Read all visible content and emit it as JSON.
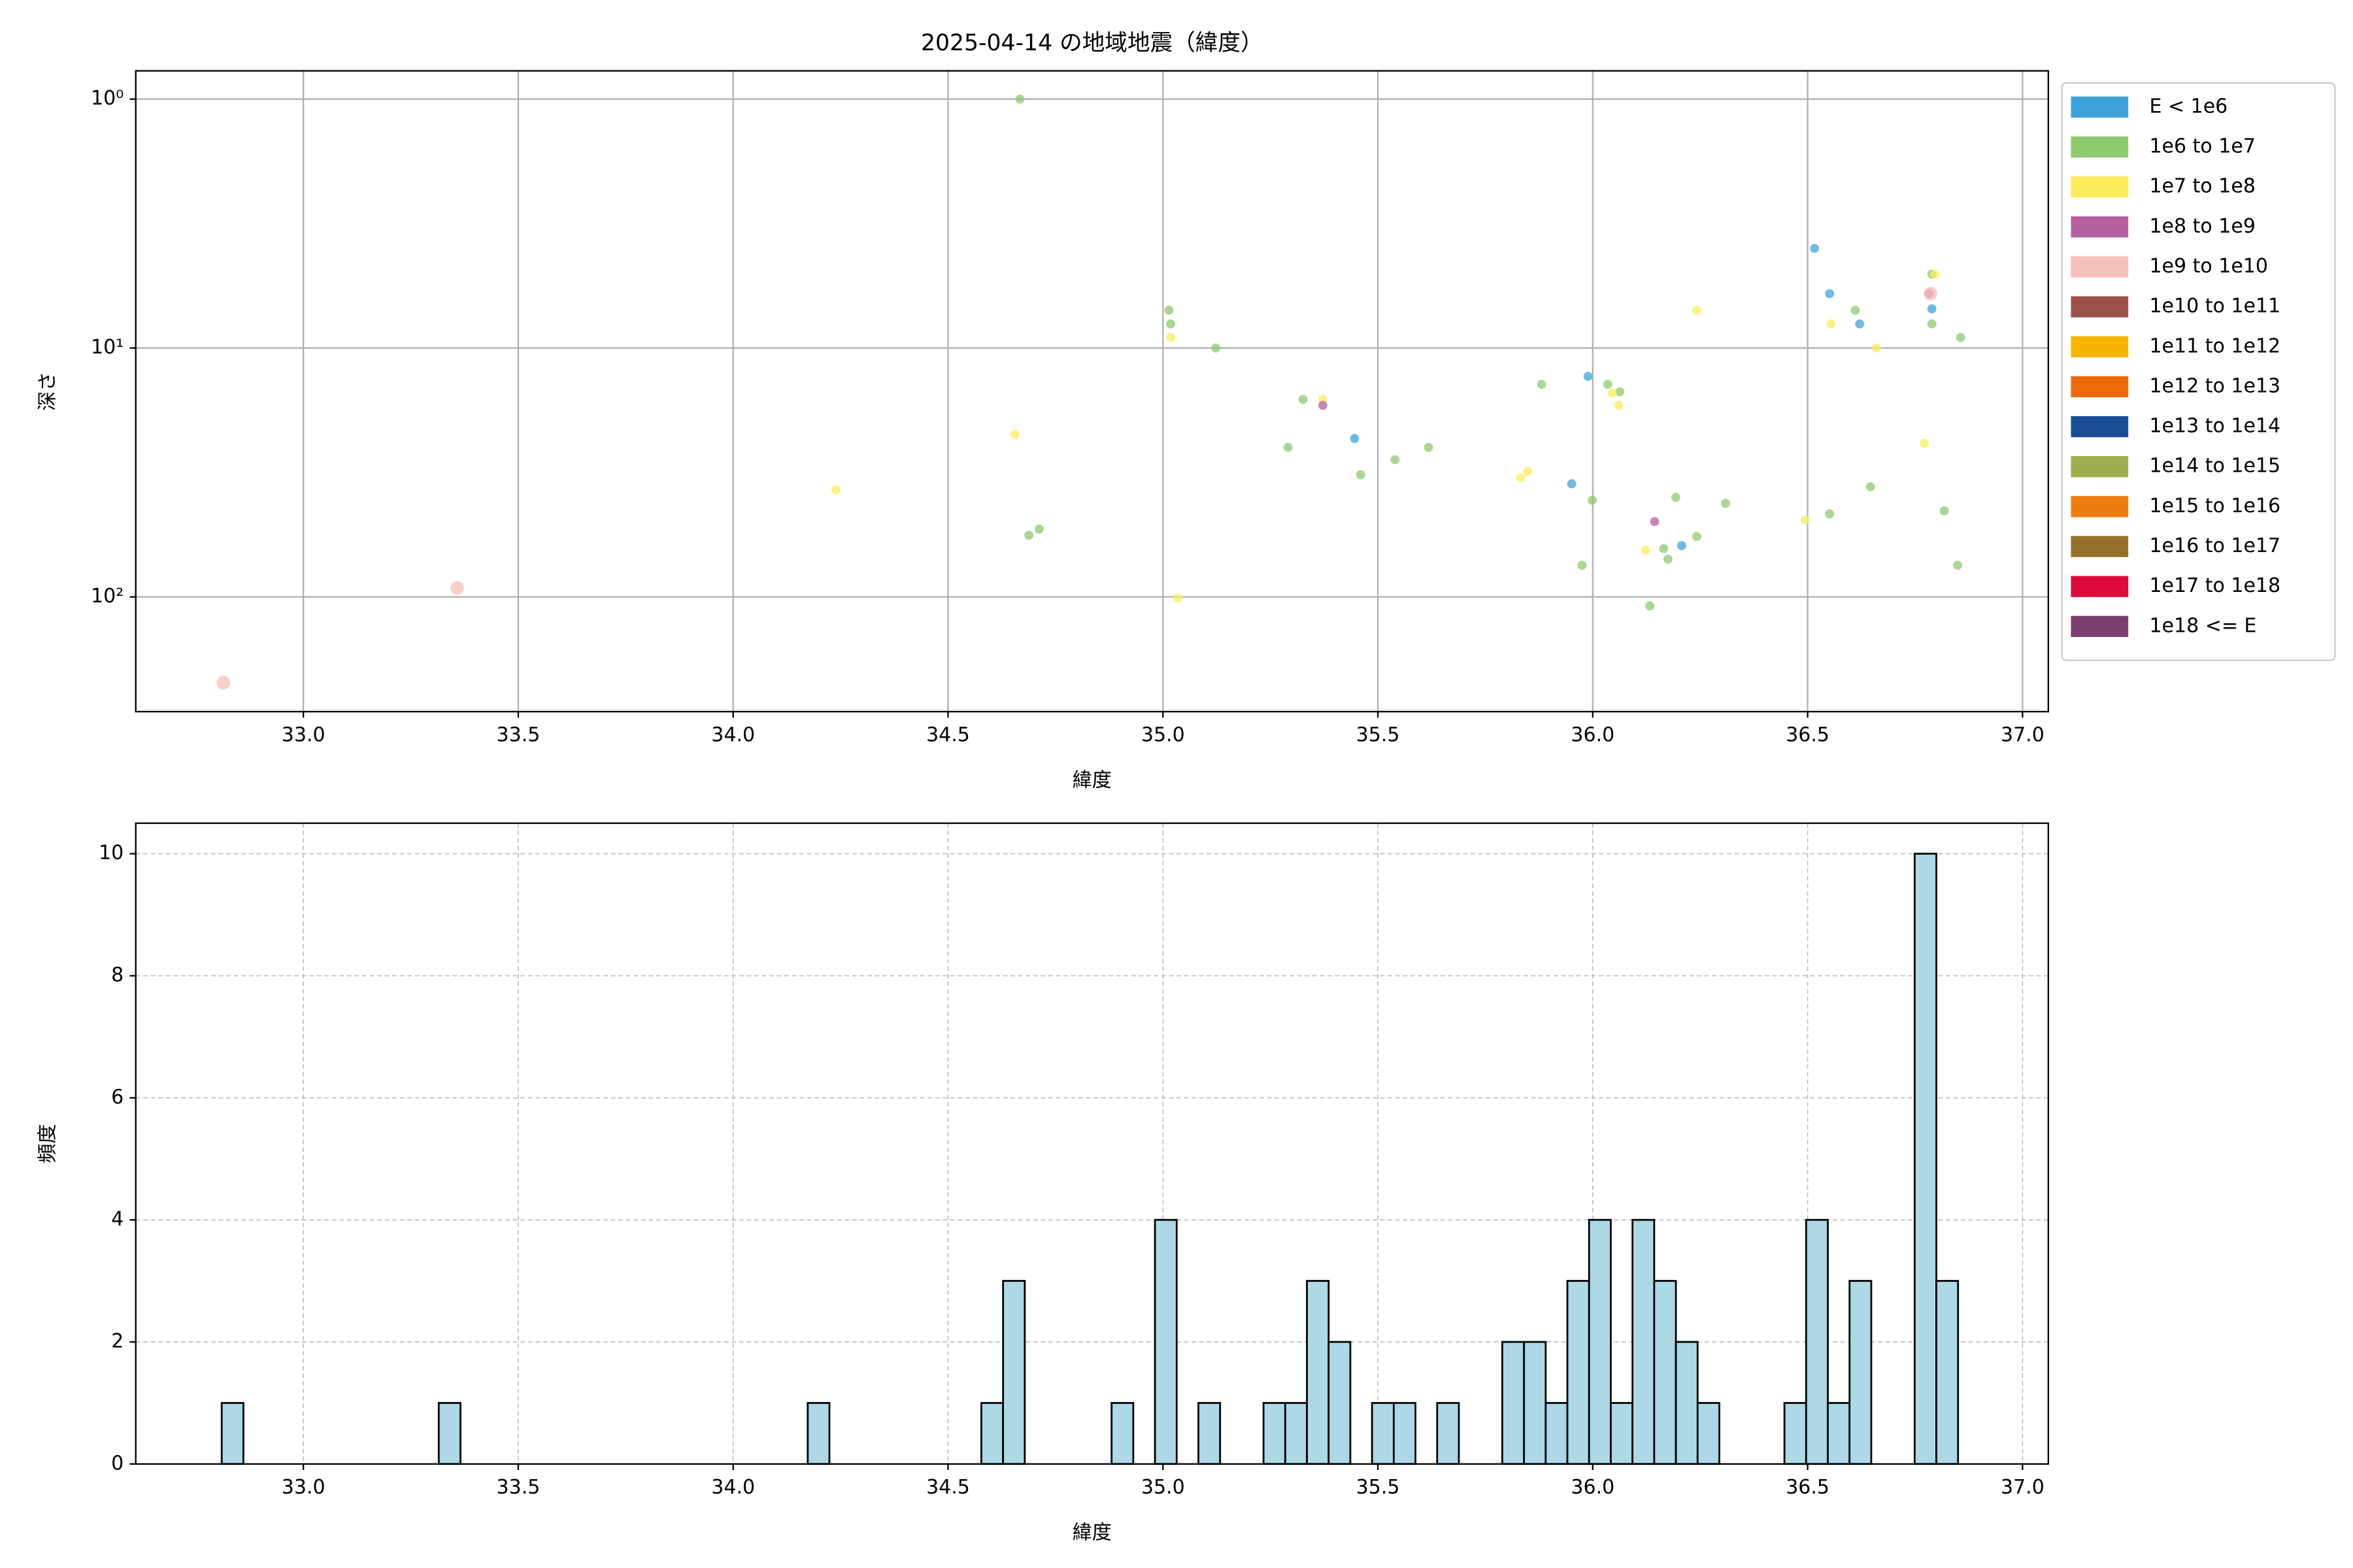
{
  "chart_data": [
    {
      "type": "scatter",
      "title": "2025-04-14 の地域地震（緯度）",
      "xlabel": "緯度",
      "ylabel": "深さ",
      "yscale": "log",
      "grid": true,
      "legend": "outside-right",
      "xlim": [
        32.61,
        37.06
      ],
      "ylim": [
        289,
        0.77
      ],
      "xticks": [
        {
          "value": 33,
          "label": "33.0"
        },
        {
          "value": 33.5,
          "label": "33.5"
        },
        {
          "value": 34,
          "label": "34.0"
        },
        {
          "value": 34.5,
          "label": "34.5"
        },
        {
          "value": 35,
          "label": "35.0"
        },
        {
          "value": 35.5,
          "label": "35.5"
        },
        {
          "value": 36,
          "label": "36.0"
        },
        {
          "value": 36.5,
          "label": "36.5"
        },
        {
          "value": 37,
          "label": "37.0"
        }
      ],
      "yticks": [
        {
          "value": 1,
          "label": "10⁰"
        },
        {
          "value": 10,
          "label": "10¹"
        },
        {
          "value": 100,
          "label": "10²"
        }
      ],
      "series": [
        {
          "name": "E < 1e6",
          "color": "#3ea3dc",
          "x": [
            36.516,
            36.551,
            36.621,
            36.789,
            35.989,
            35.446,
            35.951,
            36.207
          ],
          "values": [
            3.98,
            6.05,
            8.0,
            6.96,
            13.0,
            23.1,
            35.1,
            62.2
          ]
        },
        {
          "name": "1e6 to 1e7",
          "color": "#8dc96d",
          "x": [
            34.667,
            35.014,
            35.018,
            35.123,
            35.326,
            35.291,
            35.46,
            35.54,
            35.618,
            34.688,
            34.712,
            35.881,
            36.035,
            36.063,
            35.999,
            35.975,
            36.133,
            36.165,
            36.175,
            36.193,
            36.242,
            36.309,
            36.551,
            36.611,
            36.646,
            36.789,
            36.789,
            36.856,
            36.818,
            36.849
          ],
          "values": [
            1.0,
            7.05,
            8.0,
            10,
            16.1,
            25.1,
            32.3,
            28.1,
            25.1,
            56.5,
            53.4,
            14.0,
            14.0,
            15.0,
            40.9,
            74.6,
            108.7,
            64.0,
            70.5,
            39.8,
            57.2,
            42.1,
            46.4,
            7.05,
            36.1,
            5.05,
            8.0,
            9.07,
            45.1,
            74.6
          ]
        },
        {
          "name": "1e7 to 1e8",
          "color": "#fdec5a",
          "x": [
            34.239,
            34.656,
            35.018,
            35.035,
            35.372,
            35.832,
            35.849,
            36.046,
            36.06,
            36.123,
            36.242,
            36.495,
            36.554,
            36.66,
            36.772,
            36.796
          ],
          "values": [
            37.1,
            22.2,
            9.07,
            101,
            16.1,
            33.2,
            31.3,
            15.2,
            17.0,
            64.9,
            7.05,
            49.1,
            8.0,
            10,
            24.1,
            5.05
          ]
        },
        {
          "name": "1e8 to 1e9",
          "color": "#b5609f",
          "x": [
            35.372,
            36.144,
            36.782
          ],
          "values": [
            17.0,
            49.8,
            6.05
          ]
        },
        {
          "name": "1e9 to 1e10",
          "color": "#f5bfb8",
          "x": [
            32.814,
            33.358,
            36.786
          ],
          "values": [
            221,
            92,
            6.05
          ]
        },
        {
          "name": "1e10 to 1e11",
          "color": "#9a5149",
          "x": [],
          "values": []
        },
        {
          "name": "1e11 to 1e12",
          "color": "#f7b500",
          "x": [],
          "values": []
        },
        {
          "name": "1e12 to 1e13",
          "color": "#ec6a0c",
          "x": [],
          "values": []
        },
        {
          "name": "1e13 to 1e14",
          "color": "#1b4c96",
          "x": [],
          "values": []
        },
        {
          "name": "1e14 to 1e15",
          "color": "#9daf4d",
          "x": [],
          "values": []
        },
        {
          "name": "1e15 to 1e16",
          "color": "#ee7d10",
          "x": [],
          "values": []
        },
        {
          "name": "1e16 to 1e17",
          "color": "#94702b",
          "x": [],
          "values": []
        },
        {
          "name": "1e17 to 1e18",
          "color": "#dd0a3c",
          "x": [],
          "values": []
        },
        {
          "name": "1e18 <= E",
          "color": "#7a3f6e",
          "x": [],
          "values": []
        }
      ]
    },
    {
      "type": "histogram",
      "xlabel": "緯度",
      "ylabel": "頻度",
      "grid": true,
      "color": "#add8e6",
      "edgecolor": "#000000",
      "xlim": [
        32.61,
        37.06
      ],
      "ylim": [
        0,
        10.5
      ],
      "xticks": [
        {
          "value": 33,
          "label": "33.0"
        },
        {
          "value": 33.5,
          "label": "33.5"
        },
        {
          "value": 34,
          "label": "34.0"
        },
        {
          "value": 34.5,
          "label": "34.5"
        },
        {
          "value": 35,
          "label": "35.0"
        },
        {
          "value": 35.5,
          "label": "35.5"
        },
        {
          "value": 36,
          "label": "36.0"
        },
        {
          "value": 36.5,
          "label": "36.5"
        },
        {
          "value": 37,
          "label": "37.0"
        }
      ],
      "yticks": [
        0,
        2,
        4,
        6,
        8,
        10
      ],
      "bins": [
        32.81,
        32.8605,
        32.911,
        32.9615,
        33.012,
        33.0625,
        33.113,
        33.1635,
        33.214,
        33.2645,
        33.315,
        33.3655,
        33.416,
        33.4665,
        33.517,
        33.5675,
        33.618,
        33.6685,
        33.719,
        33.7695,
        33.82,
        33.8705,
        33.921,
        33.9715,
        34.022,
        34.0725,
        34.123,
        34.1735,
        34.224,
        34.2745,
        34.325,
        34.3755,
        34.426,
        34.4765,
        34.527,
        34.5775,
        34.628,
        34.6785,
        34.729,
        34.7795,
        34.83,
        34.8805,
        34.931,
        34.9815,
        35.032,
        35.0825,
        35.133,
        35.1835,
        35.234,
        35.2845,
        35.335,
        35.3855,
        35.436,
        35.4865,
        35.537,
        35.5875,
        35.638,
        35.6885,
        35.739,
        35.7895,
        35.84,
        35.8905,
        35.941,
        35.9915,
        36.042,
        36.0925,
        36.143,
        36.1935,
        36.244,
        36.2945,
        36.345,
        36.3955,
        36.446,
        36.4965,
        36.547,
        36.5975,
        36.648,
        36.6985,
        36.749,
        36.7995,
        36.85
      ],
      "values": [
        1,
        0,
        0,
        0,
        0,
        0,
        0,
        0,
        0,
        0,
        1,
        0,
        0,
        0,
        0,
        0,
        0,
        0,
        0,
        0,
        0,
        0,
        0,
        0,
        0,
        0,
        0,
        1,
        0,
        0,
        0,
        0,
        0,
        0,
        0,
        1,
        3,
        0,
        0,
        0,
        0,
        1,
        0,
        4,
        0,
        1,
        0,
        0,
        1,
        1,
        3,
        2,
        0,
        1,
        1,
        0,
        1,
        0,
        0,
        2,
        2,
        1,
        3,
        4,
        1,
        4,
        3,
        2,
        1,
        0,
        0,
        0,
        1,
        4,
        1,
        3,
        0,
        0,
        10,
        3
      ]
    }
  ]
}
